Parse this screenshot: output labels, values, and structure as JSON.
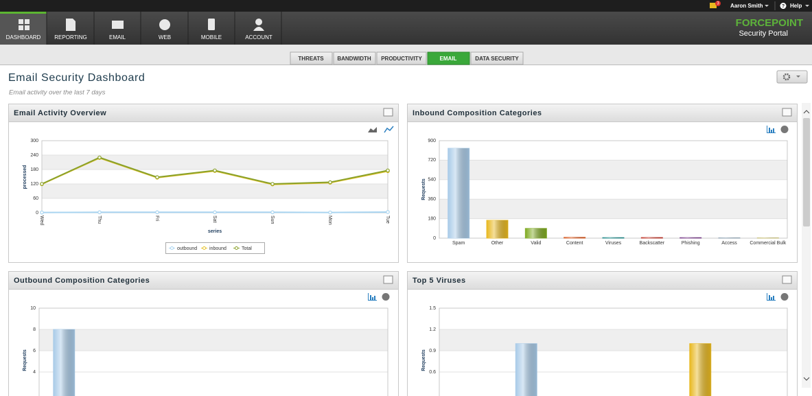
{
  "top_bar": {
    "notifications": "3",
    "user": "Aaron Smith",
    "help": "Help"
  },
  "nav": {
    "items": [
      "DASHBOARD",
      "REPORTING",
      "EMAIL",
      "WEB",
      "MOBILE",
      "ACCOUNT"
    ],
    "brand": "FORCEPOINT",
    "product": "Security Portal"
  },
  "tabs": [
    "THREATS",
    "BANDWIDTH",
    "PRODUCTIVITY",
    "EMAIL",
    "DATA SECURITY"
  ],
  "page": {
    "title": "Email Security Dashboard",
    "subtitle": "Email activity over the last 7 days"
  },
  "chart_data": [
    {
      "type": "line",
      "title": "Email Activity Overview",
      "categories": [
        "Wed",
        "Thu",
        "Fri",
        "Sat",
        "Sun",
        "Mon",
        "Tue"
      ],
      "xlabel": "series",
      "ylabel": "processed",
      "ylim": [
        0,
        300
      ],
      "yticks": [
        0,
        60,
        120,
        180,
        240,
        300
      ],
      "legend": "bottom",
      "series": [
        {
          "name": "outbound",
          "color": "#a8d4f0",
          "values": [
            1,
            2,
            2,
            2,
            2,
            1,
            3
          ]
        },
        {
          "name": "inbound",
          "color": "#e6c229",
          "values": [
            119,
            228,
            146,
            174,
            118,
            125,
            173
          ]
        },
        {
          "name": "Total",
          "color": "#8aa12a",
          "values": [
            120,
            230,
            148,
            176,
            120,
            127,
            176
          ]
        }
      ]
    },
    {
      "type": "bar",
      "title": "Inbound Composition Categories",
      "categories": [
        "Spam",
        "Other",
        "Valid",
        "Content",
        "Viruses",
        "Backscatter",
        "Phishing",
        "Access",
        "Commercial Bulk"
      ],
      "values": [
        830,
        165,
        90,
        8,
        5,
        6,
        5,
        3,
        3
      ],
      "colors": [
        "#a9cbe8",
        "#e8b820",
        "#7faa22",
        "#d9622b",
        "#1f8a8a",
        "#c0392b",
        "#7b3f8c",
        "#8fa3b3",
        "#c8c07a"
      ],
      "ylabel": "Requests",
      "ylim": [
        0,
        900
      ],
      "yticks": [
        0,
        180,
        360,
        540,
        720,
        900
      ]
    },
    {
      "type": "bar",
      "title": "Outbound Composition Categories",
      "categories": [
        null,
        null,
        null,
        null,
        null,
        null,
        null
      ],
      "values": [
        8,
        0,
        0,
        0,
        0,
        0,
        0
      ],
      "colors": [
        "#a9cbe8",
        "#e8b820",
        "#7faa22",
        "#d9622b",
        "#1f8a8a",
        "#c0392b",
        "#7b3f8c"
      ],
      "ylabel": "Requests",
      "ylim": [
        0,
        10
      ],
      "yticks": [
        4,
        6,
        8,
        10
      ]
    },
    {
      "type": "bar",
      "title": "Top 5 Viruses",
      "categories": [
        null,
        null
      ],
      "values": [
        1,
        1
      ],
      "colors": [
        "#a9cbe8",
        "#e8b820"
      ],
      "ylabel": "Requests",
      "ylim": [
        0,
        1.5
      ],
      "yticks": [
        0.6,
        0.9,
        1.2,
        1.5
      ]
    }
  ]
}
